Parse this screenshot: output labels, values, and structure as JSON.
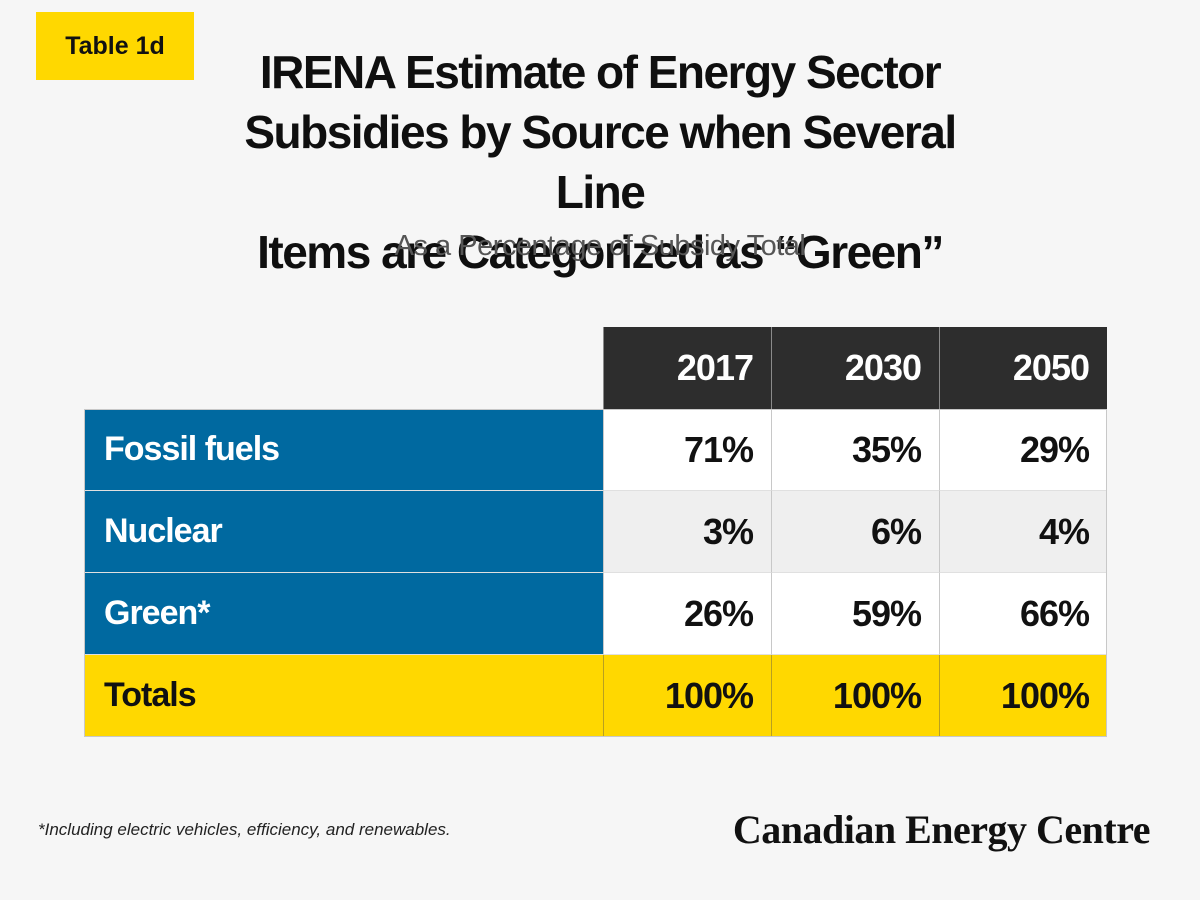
{
  "badge": "Table 1d",
  "title_lines": [
    "IRENA Estimate of Energy Sector",
    "Subsidies by Source when Several Line",
    "Items are Categorized as “Green”"
  ],
  "subtitle": "As a Percentage of Subsidy Total",
  "chart_data": {
    "type": "table",
    "title": "IRENA Estimate of Energy Sector Subsidies by Source when Several Line Items are Categorized as “Green”",
    "subtitle": "As a Percentage of Subsidy Total",
    "columns": [
      "2017",
      "2030",
      "2050"
    ],
    "rows": [
      {
        "label": "Fossil fuels",
        "values": [
          "71%",
          "35%",
          "29%"
        ]
      },
      {
        "label": "Nuclear",
        "values": [
          "3%",
          "6%",
          "4%"
        ]
      },
      {
        "label": "Green*",
        "values": [
          "26%",
          "59%",
          "66%"
        ]
      },
      {
        "label": "Totals",
        "values": [
          "100%",
          "100%",
          "100%"
        ]
      }
    ]
  },
  "footnote": "*Including electric vehicles, efficiency, and renewables.",
  "logo_text": "Canadian Energy Centre",
  "colors": {
    "badge": "#ffd800",
    "header_bg": "#2d2d2d",
    "row_label_blue": "#0069a0",
    "totals_row": "#ffd800",
    "alt_row": "#efefef"
  }
}
